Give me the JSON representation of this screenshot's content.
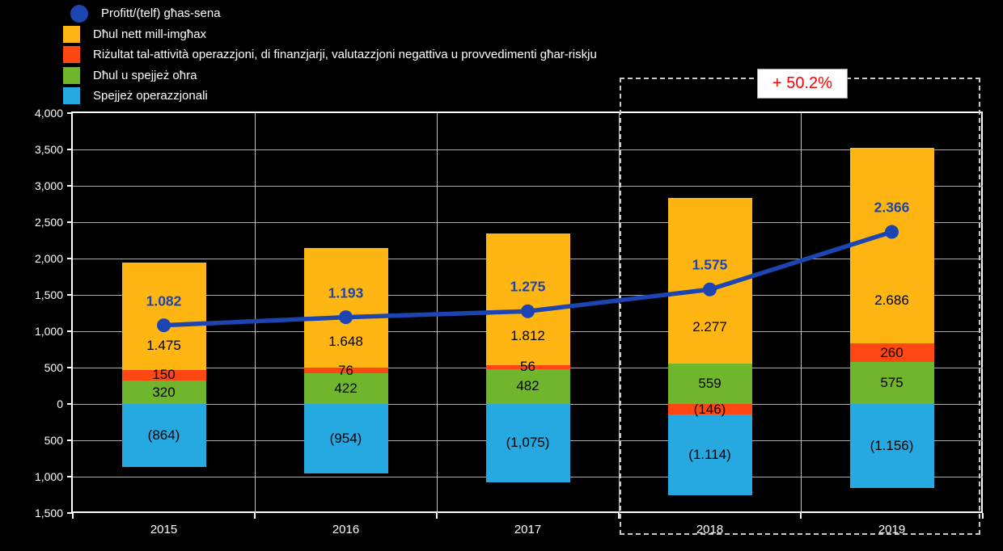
{
  "legend": {
    "items": [
      {
        "key": "profitt-ghas-sena",
        "label": "Profitt/(telf) għas-sena",
        "color": "#1C45B2",
        "shape": "circle"
      },
      {
        "key": "dhul-nett-imghax",
        "label": "Dħul nett mill-imgħax",
        "color": "#FFB612",
        "shape": "square"
      },
      {
        "key": "rizultat-attivita",
        "label": "Riżultat tal-attività operazzjoni, di finanzjarji, valutazzjoni negattiva u provvedimenti għar-riskju",
        "color": "#FF4713",
        "shape": "square"
      },
      {
        "key": "dhul-spejjez-ohra",
        "label": "Dħul u spejjeż oħra",
        "color": "#70B62C",
        "shape": "square"
      },
      {
        "key": "spejjez-operazzjonali",
        "label": "Spejjeż operazzjonali",
        "color": "#26A9E0",
        "shape": "square"
      }
    ]
  },
  "annotation": {
    "text": "+ 50.2%",
    "color": "#FF0000"
  },
  "chart_data": {
    "type": "combo-stacked-bar-line",
    "categories": [
      "2015",
      "2016",
      "2017",
      "2018",
      "2019"
    ],
    "series": [
      {
        "key": "dhul-spejjez-ohra",
        "name": "Dħul u spejjeż oħra",
        "color": "#70B62C",
        "values": [
          320,
          422,
          482,
          559,
          575
        ],
        "labels": [
          "320",
          "422",
          "482",
          "559",
          "575"
        ],
        "label_frac": 0.5
      },
      {
        "key": "rizultat-attivita",
        "name": "Riżultat tal-attività operazzjoni, di finanzjarji, valutazzjoni negattiva u provvedimenti għar-riskju",
        "color": "#FF4713",
        "values": [
          150,
          76,
          56,
          -146,
          260
        ],
        "labels": [
          "150",
          "76",
          "56",
          "(146)",
          "260"
        ],
        "label_frac": 0.5
      },
      {
        "key": "dhul-nett-imghax",
        "name": "Dħul nett mill-imgħax",
        "color": "#FFB612",
        "values": [
          1475,
          1648,
          1812,
          2277,
          2686
        ],
        "labels": [
          "1.475",
          "1.648",
          "1.812",
          "2.277",
          "2.686"
        ],
        "label_frac": 0.78
      },
      {
        "key": "spejjez-operazzjonali",
        "name": "Spejjeż operazzjonali",
        "color": "#26A9E0",
        "values": [
          -864,
          -954,
          -1075,
          -1114,
          -1156
        ],
        "labels": [
          "(864)",
          "(954)",
          "(1,075)",
          "(1.114)",
          "(1.156)"
        ],
        "label_frac": 0.5
      }
    ],
    "line_series": {
      "key": "profitt-ghas-sena",
      "name": "Profitt/(telf) għas-sena",
      "color": "#1C45B2",
      "values": [
        1082,
        1193,
        1275,
        1575,
        2366
      ],
      "labels": [
        "1.082",
        "1.193",
        "1.275",
        "1.575",
        "2.366"
      ]
    },
    "ylim": [
      -1500,
      4000
    ],
    "ytick_step": 500,
    "ytick_labels": [
      "4,000",
      "3,500",
      "3,000",
      "2,500",
      "2,000",
      "1,500",
      "1,000",
      "500",
      "0",
      "500",
      "1,000",
      "1,500"
    ],
    "grid": true,
    "legend_position": "top-left",
    "highlight": {
      "categories": [
        "2018",
        "2019"
      ],
      "label": "+ 50.2%"
    }
  }
}
